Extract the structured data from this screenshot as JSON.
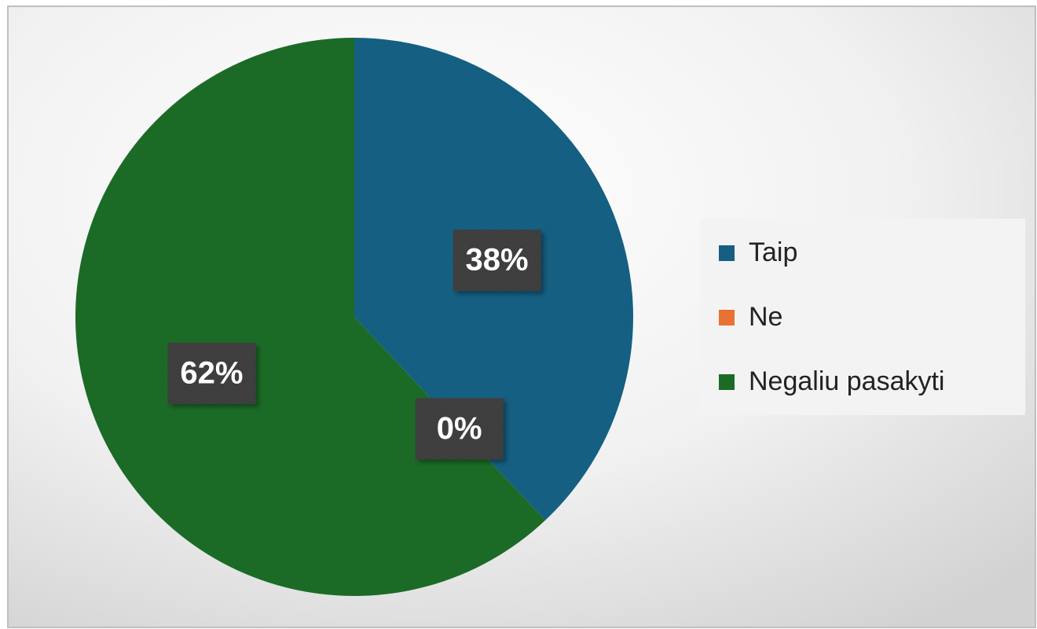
{
  "chart_data": {
    "type": "pie",
    "categories": [
      "Taip",
      "Ne",
      "Negaliu pasakyti"
    ],
    "values": [
      38,
      0,
      62
    ],
    "value_labels": [
      "38%",
      "0%",
      "62%"
    ],
    "colors": [
      "#155f82",
      "#e97132",
      "#1b6b27"
    ],
    "legend": "right"
  }
}
